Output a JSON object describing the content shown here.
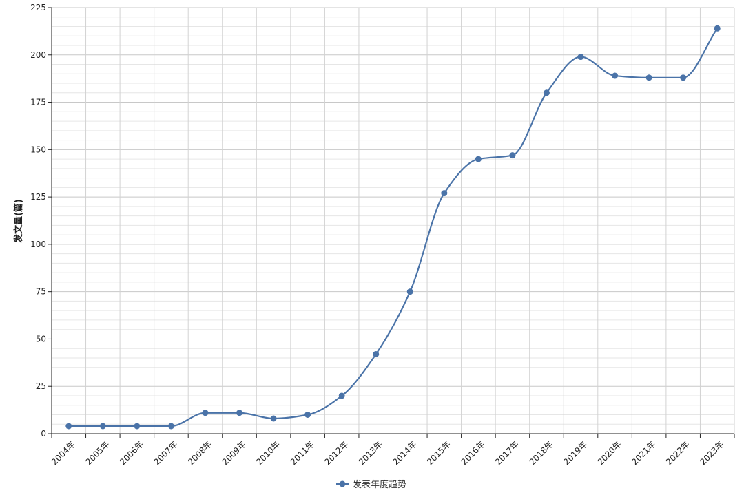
{
  "chart_data": {
    "type": "line",
    "title": "",
    "xlabel": "",
    "ylabel": "发文量(篇)",
    "categories": [
      "2004年",
      "2005年",
      "2006年",
      "2007年",
      "2008年",
      "2009年",
      "2010年",
      "2011年",
      "2012年",
      "2013年",
      "2014年",
      "2015年",
      "2016年",
      "2017年",
      "2018年",
      "2019年",
      "2020年",
      "2021年",
      "2022年",
      "2023年"
    ],
    "series": [
      {
        "name": "发表年度趋势",
        "values": [
          4,
          4,
          4,
          4,
          11,
          11,
          8,
          10,
          20,
          42,
          75,
          127,
          145,
          147,
          180,
          199,
          189,
          188,
          188,
          214
        ],
        "color": "#4a73a8"
      }
    ],
    "ylim": [
      0,
      225
    ],
    "yticks": [
      0,
      25,
      50,
      75,
      100,
      125,
      150,
      175,
      200,
      225
    ],
    "grid": true,
    "smooth": true,
    "legend": "bottom-center"
  }
}
